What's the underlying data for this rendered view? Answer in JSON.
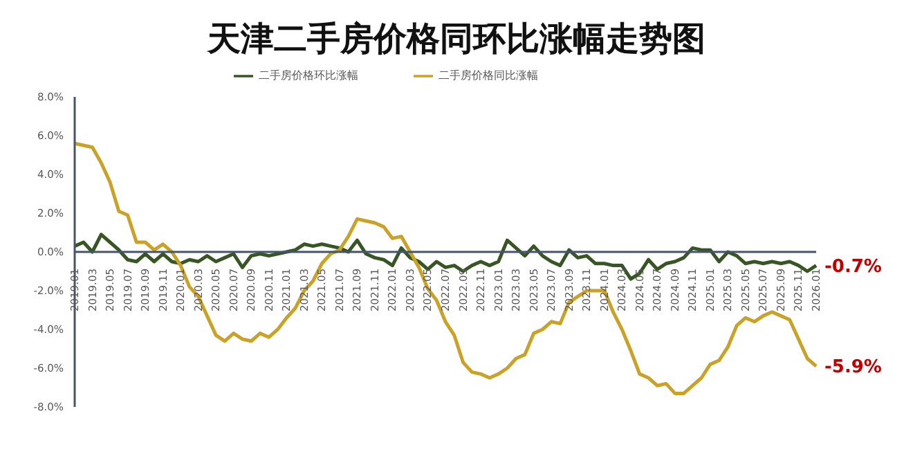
{
  "chart_data": {
    "type": "line",
    "title": "天津二手房价格同环比涨幅走势图",
    "categories": [
      "2019.01",
      null,
      "2019.03",
      null,
      "2019.05",
      null,
      "2019.07",
      null,
      "2019.09",
      null,
      "2019.11",
      null,
      "2020.01",
      null,
      "2020.03",
      null,
      "2020.05",
      null,
      "2020.07",
      null,
      "2020.09",
      null,
      "2020.11",
      null,
      "2021.01",
      null,
      "2021.03",
      null,
      "2021.05",
      null,
      "2021.07",
      null,
      "2021.09",
      null,
      "2021.11",
      null,
      "2022.01",
      null,
      "2022.03",
      null,
      "2022.05",
      null,
      "2022.07",
      null,
      "2022.09",
      null,
      "2022.11",
      null,
      "2023.01",
      null,
      "2023.03",
      null,
      "2023.05",
      null,
      "2023.07",
      null,
      "2023.09",
      null,
      "2023.11",
      null,
      "2024.01",
      null,
      "2024.03",
      null,
      "2024.05",
      null,
      "2024.07",
      null,
      "2024.09",
      null,
      "2024.11",
      null,
      "2025.01",
      null,
      "2025.03",
      null,
      "2025.05",
      null,
      "2025.07",
      null,
      "2025.09",
      null,
      "2025.11",
      null,
      "2026.01"
    ],
    "series": [
      {
        "name": "二手房价格环比涨幅",
        "color": "#375623",
        "values": [
          0.3,
          0.5,
          0.0,
          0.9,
          0.5,
          0.1,
          -0.4,
          -0.5,
          -0.1,
          -0.5,
          -0.1,
          -0.5,
          -0.6,
          -0.4,
          -0.5,
          -0.2,
          -0.5,
          -0.3,
          -0.1,
          -0.8,
          -0.2,
          -0.1,
          -0.2,
          -0.1,
          0.0,
          0.1,
          0.4,
          0.3,
          0.4,
          0.3,
          0.2,
          0.0,
          0.6,
          -0.1,
          -0.3,
          -0.4,
          -0.7,
          0.2,
          -0.3,
          -0.5,
          -0.9,
          -0.5,
          -0.8,
          -0.7,
          -1.0,
          -0.7,
          -0.5,
          -0.7,
          -0.5,
          0.6,
          0.2,
          -0.2,
          0.3,
          -0.2,
          -0.5,
          -0.7,
          0.1,
          -0.3,
          -0.2,
          -0.6,
          -0.6,
          -0.7,
          -0.7,
          -1.4,
          -1.1,
          -0.4,
          -0.9,
          -0.6,
          -0.5,
          -0.3,
          0.2,
          0.1,
          0.1,
          -0.5,
          0.0,
          -0.2,
          -0.6,
          -0.5,
          -0.6,
          -0.5,
          -0.6,
          -0.5,
          -0.7,
          -1.0,
          -0.7
        ]
      },
      {
        "name": "二手房价格同比涨幅",
        "color": "#c9a227",
        "values": [
          5.6,
          5.5,
          5.4,
          4.6,
          3.6,
          2.1,
          1.9,
          0.5,
          0.5,
          0.1,
          0.4,
          0.0,
          -0.7,
          -1.8,
          -2.3,
          -3.3,
          -4.3,
          -4.6,
          -4.2,
          -4.5,
          -4.6,
          -4.2,
          -4.4,
          -4.0,
          -3.4,
          -2.9,
          -2.0,
          -1.5,
          -0.6,
          -0.1,
          0.1,
          0.8,
          1.7,
          1.6,
          1.5,
          1.3,
          0.7,
          0.8,
          0.0,
          -0.8,
          -1.9,
          -2.5,
          -3.6,
          -4.3,
          -5.7,
          -6.2,
          -6.3,
          -6.5,
          -6.3,
          -6.0,
          -5.5,
          -5.3,
          -4.2,
          -4.0,
          -3.6,
          -3.7,
          -2.6,
          -2.3,
          -2.0,
          -2.0,
          -2.0,
          -3.1,
          -4.0,
          -5.1,
          -6.3,
          -6.5,
          -6.9,
          -6.8,
          -7.3,
          -7.3,
          -6.9,
          -6.5,
          -5.8,
          -5.6,
          -4.9,
          -3.8,
          -3.4,
          -3.6,
          -3.3,
          -3.1,
          -3.3,
          -3.5,
          -4.5,
          -5.5,
          -5.9
        ]
      }
    ],
    "ylim": [
      -8,
      8
    ],
    "yticks": [
      {
        "value": -8,
        "label": "-8.0%"
      },
      {
        "value": -6,
        "label": "-6.0%"
      },
      {
        "value": -4,
        "label": "-4.0%"
      },
      {
        "value": -2,
        "label": "-2.0%"
      },
      {
        "value": 0,
        "label": "0.0%"
      },
      {
        "value": 2,
        "label": "2.0%"
      },
      {
        "value": 4,
        "label": "4.0%"
      },
      {
        "value": 6,
        "label": "6.0%"
      },
      {
        "value": 8,
        "label": "8.0%"
      }
    ],
    "annotations": [
      {
        "text": "-0.7%",
        "x": "2026.01",
        "y": -0.7
      },
      {
        "text": "-5.9%",
        "x": "2026.01",
        "y": -5.9
      }
    ],
    "grid": false,
    "legend": "top",
    "marker": "none",
    "line_style": "solid"
  }
}
